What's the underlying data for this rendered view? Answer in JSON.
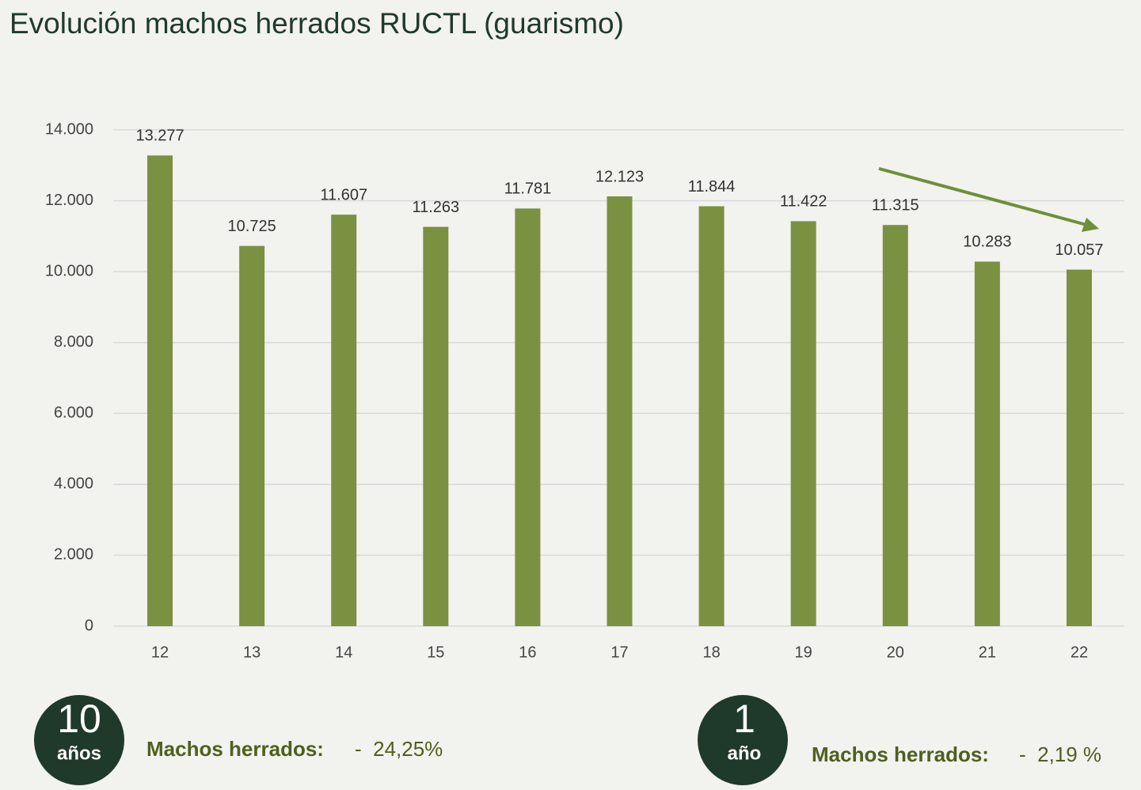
{
  "chart_data": {
    "type": "bar",
    "title": "Evolución machos herrados RUCTL (guarismo)",
    "categories": [
      "12",
      "13",
      "14",
      "15",
      "16",
      "17",
      "18",
      "19",
      "20",
      "21",
      "22"
    ],
    "values": [
      13277,
      10725,
      11607,
      11263,
      11781,
      12123,
      11844,
      11422,
      11315,
      10283,
      10057
    ],
    "value_labels": [
      "13.277",
      "10.725",
      "11.607",
      "11.263",
      "11.781",
      "12.123",
      "11.844",
      "11.422",
      "11.315",
      "10.283",
      "10.057"
    ],
    "color": "#799141",
    "ylim": [
      0,
      14000
    ],
    "yticks": [
      0,
      {
        "value": 2000,
        "label": "2.000"
      },
      {
        "value": 4000,
        "label": "4.000"
      },
      {
        "value": 6000,
        "label": "6.000"
      },
      {
        "value": 8000,
        "label": "8.000"
      },
      {
        "value": 10000,
        "label": "10.000"
      },
      {
        "value": 12000,
        "label": "12.000"
      },
      {
        "value": 14000,
        "label": "14.000"
      }
    ],
    "grid": true
  },
  "summary": [
    {
      "number": "10",
      "unit": "años",
      "label": "Machos herrados:",
      "value": "-  24,25%"
    },
    {
      "number": "1",
      "unit": "año",
      "label": "Machos herrados:",
      "value": "-  2,19 %"
    }
  ]
}
